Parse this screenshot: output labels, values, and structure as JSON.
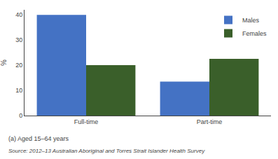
{
  "chart_data": {
    "type": "bar",
    "categories": [
      "Full-time",
      "Part-time"
    ],
    "series": [
      {
        "name": "Males",
        "color": "#4472C4",
        "values": [
          40,
          13.5
        ]
      },
      {
        "name": "Females",
        "color": "#3A5F2A",
        "values": [
          20,
          22.5
        ]
      }
    ],
    "ylabel": "%",
    "ylim": [
      0,
      42
    ],
    "yticks": [
      0,
      10,
      20,
      30,
      40
    ],
    "grid": false,
    "legend": "upper right",
    "annotations": [
      "(a) Aged 15–64 years",
      "Source: 2012–13 Australian Aboriginal and Torres Strait Islander Health Survey"
    ]
  }
}
